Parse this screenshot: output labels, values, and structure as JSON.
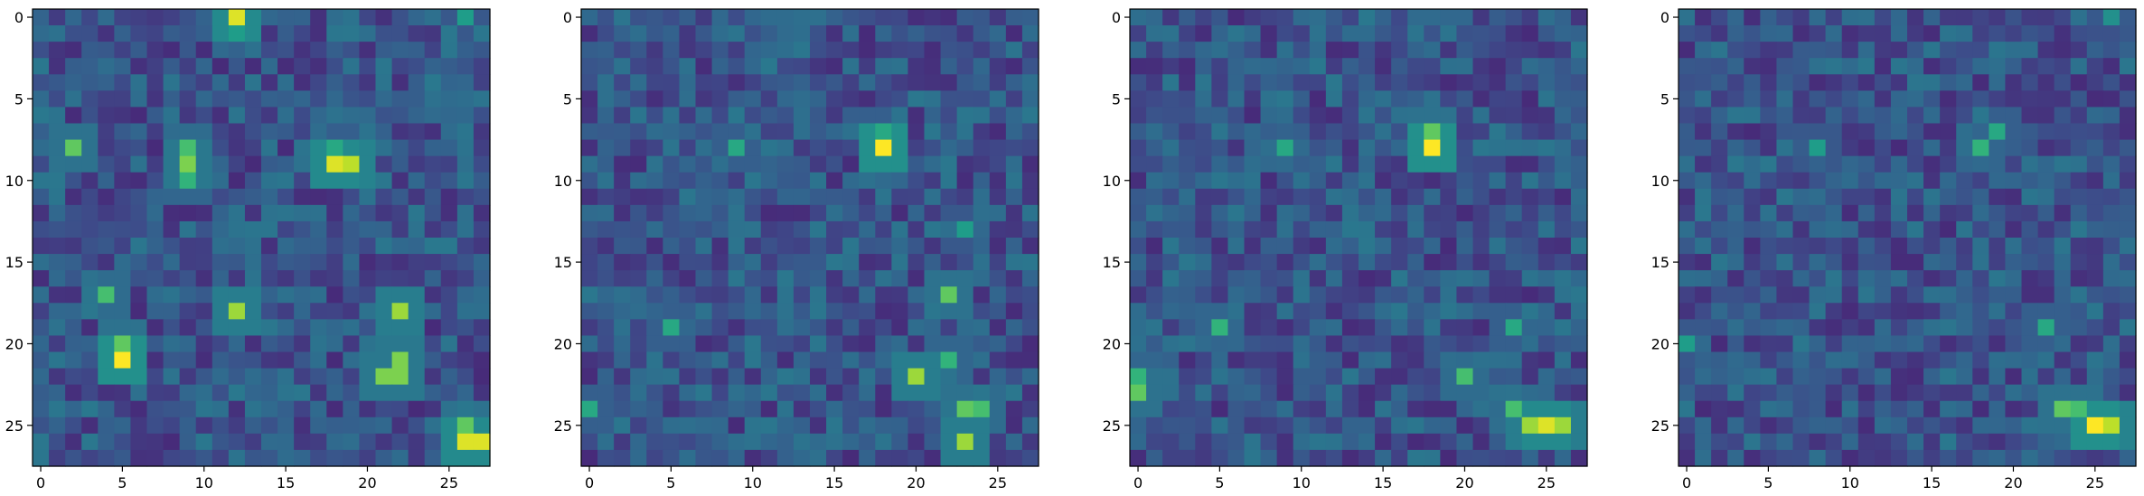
{
  "chart_data": [
    {
      "type": "heatmap",
      "colormap": "viridis",
      "rows": 28,
      "cols": 28,
      "xticks": [
        0,
        5,
        10,
        15,
        20,
        25
      ],
      "yticks": [
        0,
        5,
        10,
        15,
        20,
        25
      ],
      "xlim": [
        -0.5,
        27.5
      ],
      "ylim": [
        27.5,
        -0.5
      ],
      "hotspots": [
        {
          "r": 0,
          "c": 12,
          "v": 0.95
        },
        {
          "r": 1,
          "c": 12,
          "v": 0.55
        },
        {
          "r": 0,
          "c": 26,
          "v": 0.55
        },
        {
          "r": 8,
          "c": 2,
          "v": 0.75
        },
        {
          "r": 8,
          "c": 9,
          "v": 0.7
        },
        {
          "r": 9,
          "c": 9,
          "v": 0.8
        },
        {
          "r": 10,
          "c": 9,
          "v": 0.65
        },
        {
          "r": 9,
          "c": 18,
          "v": 0.95
        },
        {
          "r": 9,
          "c": 19,
          "v": 0.9
        },
        {
          "r": 8,
          "c": 18,
          "v": 0.6
        },
        {
          "r": 17,
          "c": 4,
          "v": 0.7
        },
        {
          "r": 18,
          "c": 12,
          "v": 0.85
        },
        {
          "r": 18,
          "c": 22,
          "v": 0.85
        },
        {
          "r": 20,
          "c": 5,
          "v": 0.75
        },
        {
          "r": 21,
          "c": 5,
          "v": 1.0
        },
        {
          "r": 21,
          "c": 22,
          "v": 0.8
        },
        {
          "r": 22,
          "c": 21,
          "v": 0.8
        },
        {
          "r": 22,
          "c": 22,
          "v": 0.8
        },
        {
          "r": 25,
          "c": 26,
          "v": 0.75
        },
        {
          "r": 26,
          "c": 26,
          "v": 0.95
        },
        {
          "r": 26,
          "c": 27,
          "v": 0.95
        }
      ]
    },
    {
      "type": "heatmap",
      "colormap": "viridis",
      "rows": 28,
      "cols": 28,
      "xticks": [
        0,
        5,
        10,
        15,
        20,
        25
      ],
      "yticks": [
        0,
        5,
        10,
        15,
        20,
        25
      ],
      "xlim": [
        -0.5,
        27.5
      ],
      "ylim": [
        27.5,
        -0.5
      ],
      "hotspots": [
        {
          "r": 8,
          "c": 18,
          "v": 1.0
        },
        {
          "r": 7,
          "c": 18,
          "v": 0.6
        },
        {
          "r": 8,
          "c": 9,
          "v": 0.6
        },
        {
          "r": 19,
          "c": 5,
          "v": 0.6
        },
        {
          "r": 17,
          "c": 22,
          "v": 0.75
        },
        {
          "r": 22,
          "c": 20,
          "v": 0.85
        },
        {
          "r": 21,
          "c": 22,
          "v": 0.65
        },
        {
          "r": 24,
          "c": 23,
          "v": 0.75
        },
        {
          "r": 24,
          "c": 24,
          "v": 0.7
        },
        {
          "r": 26,
          "c": 23,
          "v": 0.85
        },
        {
          "r": 24,
          "c": 0,
          "v": 0.6
        },
        {
          "r": 13,
          "c": 23,
          "v": 0.55
        }
      ]
    },
    {
      "type": "heatmap",
      "colormap": "viridis",
      "rows": 28,
      "cols": 28,
      "xticks": [
        0,
        5,
        10,
        15,
        20,
        25
      ],
      "yticks": [
        0,
        5,
        10,
        15,
        20,
        25
      ],
      "xlim": [
        -0.5,
        27.5
      ],
      "ylim": [
        27.5,
        -0.5
      ],
      "hotspots": [
        {
          "r": 8,
          "c": 18,
          "v": 1.0
        },
        {
          "r": 7,
          "c": 18,
          "v": 0.75
        },
        {
          "r": 8,
          "c": 9,
          "v": 0.6
        },
        {
          "r": 19,
          "c": 5,
          "v": 0.65
        },
        {
          "r": 23,
          "c": 0,
          "v": 0.75
        },
        {
          "r": 22,
          "c": 0,
          "v": 0.65
        },
        {
          "r": 22,
          "c": 20,
          "v": 0.7
        },
        {
          "r": 24,
          "c": 23,
          "v": 0.7
        },
        {
          "r": 25,
          "c": 24,
          "v": 0.85
        },
        {
          "r": 25,
          "c": 25,
          "v": 0.95
        },
        {
          "r": 25,
          "c": 26,
          "v": 0.85
        },
        {
          "r": 19,
          "c": 23,
          "v": 0.6
        }
      ]
    },
    {
      "type": "heatmap",
      "colormap": "viridis",
      "rows": 28,
      "cols": 28,
      "xticks": [
        0,
        5,
        10,
        15,
        20,
        25
      ],
      "yticks": [
        0,
        5,
        10,
        15,
        20,
        25
      ],
      "xlim": [
        -0.5,
        27.5
      ],
      "ylim": [
        27.5,
        -0.5
      ],
      "hotspots": [
        {
          "r": 8,
          "c": 18,
          "v": 0.65
        },
        {
          "r": 7,
          "c": 19,
          "v": 0.6
        },
        {
          "r": 8,
          "c": 8,
          "v": 0.55
        },
        {
          "r": 19,
          "c": 22,
          "v": 0.6
        },
        {
          "r": 20,
          "c": 0,
          "v": 0.55
        },
        {
          "r": 24,
          "c": 23,
          "v": 0.75
        },
        {
          "r": 25,
          "c": 25,
          "v": 1.0
        },
        {
          "r": 25,
          "c": 26,
          "v": 0.9
        },
        {
          "r": 24,
          "c": 24,
          "v": 0.7
        },
        {
          "r": 0,
          "c": 26,
          "v": 0.5
        }
      ]
    }
  ]
}
